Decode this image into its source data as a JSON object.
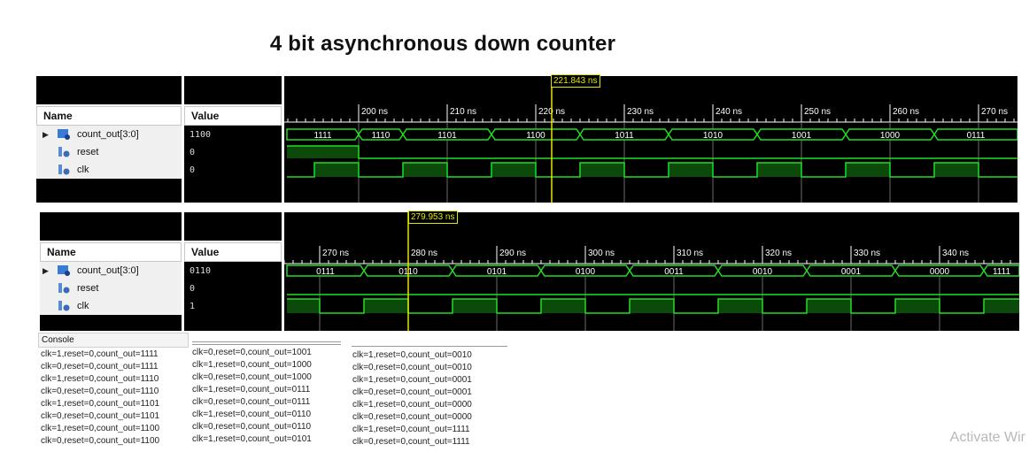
{
  "title": "4 bit asynchronous down counter",
  "colors": {
    "wave": "#22dd22",
    "cursor": "#e6e600",
    "bus_fill": "#000000",
    "high_fill": "#0b4a0b"
  },
  "panels": [
    {
      "id": "top",
      "name_header": "Name",
      "value_header": "Value",
      "signals": [
        {
          "name": "count_out[3:0]",
          "value": "1100",
          "icon": "bus-icon"
        },
        {
          "name": "reset",
          "value": "0",
          "icon": "signal-icon"
        },
        {
          "name": "clk",
          "value": "0",
          "icon": "signal-icon"
        }
      ],
      "cursor_label": "221.843 ns",
      "ticks": [
        "200 ns",
        "210 ns",
        "220 ns",
        "230 ns",
        "240 ns",
        "250 ns",
        "260 ns",
        "270 ns"
      ],
      "bus_values": [
        "1111",
        "1110",
        "1101",
        "1100",
        "1011",
        "1010",
        "1001",
        "1000",
        "0111"
      ]
    },
    {
      "id": "bottom",
      "name_header": "Name",
      "value_header": "Value",
      "signals": [
        {
          "name": "count_out[3:0]",
          "value": "0110",
          "icon": "bus-icon"
        },
        {
          "name": "reset",
          "value": "0",
          "icon": "signal-icon"
        },
        {
          "name": "clk",
          "value": "1",
          "icon": "signal-icon"
        }
      ],
      "cursor_label": "279.953 ns",
      "ticks": [
        "270 ns",
        "280 ns",
        "290 ns",
        "300 ns",
        "310 ns",
        "320 ns",
        "330 ns",
        "340 ns"
      ],
      "bus_values": [
        "0111",
        "0110",
        "0101",
        "0100",
        "0011",
        "0010",
        "0001",
        "0000",
        "1111"
      ]
    }
  ],
  "console": {
    "tab": "Console",
    "col1": [
      "clk=1,reset=0,count_out=1111",
      "clk=0,reset=0,count_out=1111",
      "clk=1,reset=0,count_out=1110",
      "clk=0,reset=0,count_out=1110",
      "clk=1,reset=0,count_out=1101",
      "clk=0,reset=0,count_out=1101",
      "clk=1,reset=0,count_out=1100",
      "clk=0,reset=0,count_out=1100"
    ],
    "col2": [
      "clk=0,reset=0,count_out=1001",
      "clk=1,reset=0,count_out=1000",
      "clk=0,reset=0,count_out=1000",
      "clk=1,reset=0,count_out=0111",
      "clk=0,reset=0,count_out=0111",
      "clk=1,reset=0,count_out=0110",
      "clk=0,reset=0,count_out=0110",
      "clk=1,reset=0,count_out=0101"
    ],
    "col3": [
      "clk=1,reset=0,count_out=0010",
      "clk=0,reset=0,count_out=0010",
      "clk=1,reset=0,count_out=0001",
      "clk=0,reset=0,count_out=0001",
      "clk=1,reset=0,count_out=0000",
      "clk=0,reset=0,count_out=0000",
      "clk=1,reset=0,count_out=1111",
      "clk=0,reset=0,count_out=1111"
    ]
  },
  "watermark": "Activate Wir"
}
